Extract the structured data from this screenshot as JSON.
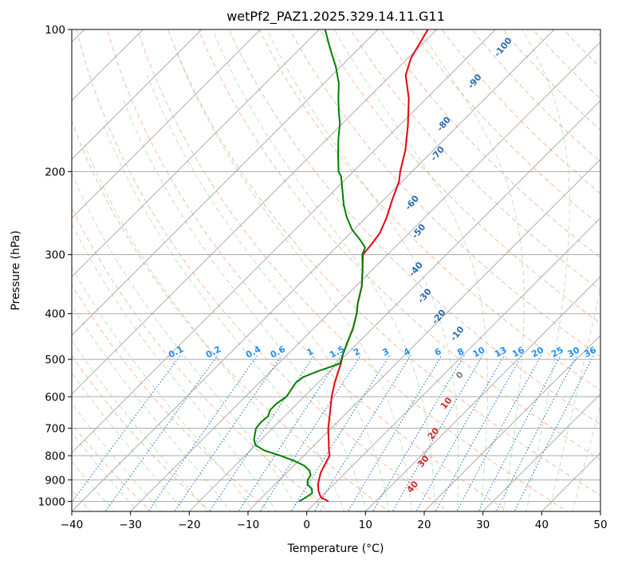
{
  "chart_data": {
    "type": "line",
    "subtype": "skew-t log-p",
    "title": "wetPf2_PAZ1.2025.329.14.11.G11",
    "xlabel": "Temperature (°C)",
    "ylabel": "Pressure (hPa)",
    "xlim": [
      -40,
      50
    ],
    "ylim": [
      1050,
      100
    ],
    "y_scale": "log",
    "x_ticks": [
      -40,
      -30,
      -20,
      -10,
      0,
      10,
      20,
      30,
      40,
      50
    ],
    "x_tick_labels": [
      "−40",
      "−30",
      "−20",
      "−10",
      "0",
      "10",
      "20",
      "30",
      "40",
      "50"
    ],
    "y_ticks": [
      1000,
      900,
      800,
      700,
      600,
      500,
      400,
      300,
      200,
      100
    ],
    "y_tick_labels": [
      "1000",
      "900",
      "800",
      "700",
      "600",
      "500",
      "400",
      "300",
      "200",
      "100"
    ],
    "grid": true,
    "series": [
      {
        "color": "#e8000b",
        "points": [
          [
            1000,
            2
          ],
          [
            980,
            0
          ],
          [
            950,
            -1.5
          ],
          [
            920,
            -2.7
          ],
          [
            900,
            -3.3
          ],
          [
            870,
            -4.2
          ],
          [
            850,
            -4.6
          ],
          [
            820,
            -5.2
          ],
          [
            800,
            -5.6
          ],
          [
            780,
            -6.6
          ],
          [
            750,
            -8
          ],
          [
            720,
            -9.5
          ],
          [
            700,
            -10.5
          ],
          [
            650,
            -12.8
          ],
          [
            600,
            -15.3
          ],
          [
            560,
            -17.2
          ],
          [
            530,
            -18.5
          ],
          [
            510,
            -19.4
          ],
          [
            490,
            -20.5
          ],
          [
            460,
            -21.9
          ],
          [
            430,
            -23.3
          ],
          [
            400,
            -25.2
          ],
          [
            380,
            -26.8
          ],
          [
            350,
            -29
          ],
          [
            320,
            -32
          ],
          [
            300,
            -34.2
          ],
          [
            285,
            -34.5
          ],
          [
            270,
            -35
          ],
          [
            250,
            -36.5
          ],
          [
            230,
            -38.5
          ],
          [
            210,
            -40.5
          ],
          [
            200,
            -42
          ],
          [
            180,
            -44.8
          ],
          [
            160,
            -48.5
          ],
          [
            140,
            -53
          ],
          [
            125,
            -57.5
          ],
          [
            115,
            -59.5
          ],
          [
            100,
            -61.5
          ]
        ]
      },
      {
        "color": "#008000",
        "points": [
          [
            1000,
            -3
          ],
          [
            980,
            -2.5
          ],
          [
            960,
            -2.2
          ],
          [
            940,
            -3
          ],
          [
            920,
            -4.5
          ],
          [
            900,
            -5.2
          ],
          [
            880,
            -5.5
          ],
          [
            860,
            -6.5
          ],
          [
            840,
            -8.2
          ],
          [
            820,
            -10.8
          ],
          [
            800,
            -14
          ],
          [
            780,
            -17.6
          ],
          [
            760,
            -20
          ],
          [
            740,
            -21.2
          ],
          [
            700,
            -22.8
          ],
          [
            680,
            -23
          ],
          [
            660,
            -22.8
          ],
          [
            640,
            -23.5
          ],
          [
            620,
            -23.5
          ],
          [
            600,
            -23
          ],
          [
            580,
            -23.4
          ],
          [
            560,
            -23.8
          ],
          [
            545,
            -23.5
          ],
          [
            530,
            -22
          ],
          [
            510,
            -19.5
          ],
          [
            490,
            -20.5
          ],
          [
            460,
            -21.9
          ],
          [
            430,
            -23.3
          ],
          [
            400,
            -25.2
          ],
          [
            380,
            -26.8
          ],
          [
            350,
            -29
          ],
          [
            320,
            -32
          ],
          [
            300,
            -34.3
          ],
          [
            290,
            -35
          ],
          [
            280,
            -37
          ],
          [
            265,
            -40.4
          ],
          [
            250,
            -43.3
          ],
          [
            235,
            -46
          ],
          [
            220,
            -48.5
          ],
          [
            205,
            -51.2
          ],
          [
            200,
            -52.5
          ],
          [
            185,
            -55.3
          ],
          [
            170,
            -58.2
          ],
          [
            158,
            -60.5
          ],
          [
            150,
            -62.5
          ],
          [
            140,
            -65
          ],
          [
            130,
            -67.5
          ],
          [
            120,
            -70.8
          ],
          [
            110,
            -74.8
          ],
          [
            100,
            -79
          ]
        ]
      }
    ],
    "dry_adiabat_labels": [
      "-100",
      "-90",
      "-80",
      "-70",
      "-60",
      "-50",
      "-40",
      "-30",
      "-20",
      "-10"
    ],
    "moist_adiabat_labels": [
      "0",
      "10",
      "20",
      "30",
      "40"
    ],
    "mixing_ratio_labels": [
      "0.1",
      "0.2",
      "0.4",
      "0.6",
      "1",
      "1.5",
      "2",
      "3",
      "4",
      "6",
      "8",
      "10",
      "13",
      "16",
      "20",
      "25",
      "30",
      "36"
    ],
    "mixing_ratio_values": [
      0.1,
      0.2,
      0.4,
      0.6,
      1,
      1.5,
      2,
      3,
      4,
      6,
      8,
      10,
      13,
      16,
      20,
      25,
      30,
      36
    ]
  }
}
